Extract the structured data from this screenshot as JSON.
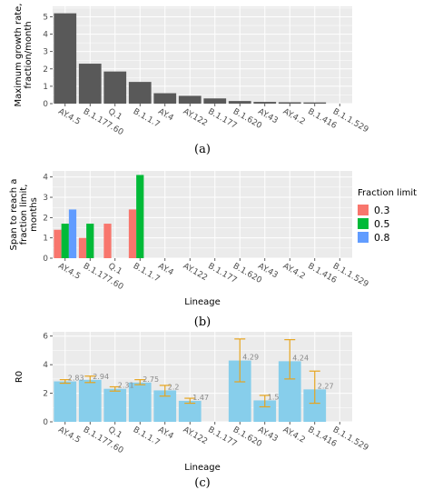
{
  "chart_data": [
    {
      "type": "bar",
      "panel": "a",
      "caption": "(a)",
      "ylabel_lines": [
        "Maximum growth rate,",
        "fraction/month"
      ],
      "xlabel": "",
      "categories": [
        "AY.4.5",
        "B.1.177.60",
        "Q.1",
        "B.1.1.7",
        "AY.4",
        "AY.122",
        "B.1.177",
        "B.1.620",
        "AY.43",
        "AY.4.2",
        "B.1.416",
        "B.1.1.529"
      ],
      "values": [
        5.2,
        2.3,
        1.85,
        1.25,
        0.6,
        0.45,
        0.3,
        0.15,
        0.1,
        0.08,
        0.07,
        0
      ],
      "ylim": [
        0,
        5.6
      ],
      "yticks": [
        "0",
        "1",
        "2",
        "3",
        "4",
        "5"
      ],
      "bar_color": "#595959",
      "grid": true
    },
    {
      "type": "bar",
      "panel": "b",
      "caption": "(b)",
      "ylabel_lines": [
        "Span to reach a",
        "fraction limit,",
        "months"
      ],
      "xlabel": "Lineage",
      "categories": [
        "AY.4.5",
        "B.1.177.60",
        "Q.1",
        "B.1.1.7",
        "AY.4",
        "AY.122",
        "B.1.177",
        "B.1.620",
        "AY.43",
        "AY.4.2",
        "B.1.416",
        "B.1.1.529"
      ],
      "series": [
        {
          "name": "0.3",
          "color": "#f8766d",
          "values": [
            1.4,
            1.0,
            1.7,
            2.4,
            null,
            null,
            null,
            null,
            null,
            null,
            null,
            null
          ]
        },
        {
          "name": "0.5",
          "color": "#00ba38",
          "values": [
            1.7,
            1.7,
            null,
            4.1,
            null,
            null,
            null,
            null,
            null,
            null,
            null,
            null
          ]
        },
        {
          "name": "0.8",
          "color": "#619cff",
          "values": [
            2.4,
            null,
            null,
            null,
            null,
            null,
            null,
            null,
            null,
            null,
            null,
            null
          ]
        }
      ],
      "ylim": [
        0,
        4.3
      ],
      "yticks": [
        "0",
        "1",
        "2",
        "3",
        "4"
      ],
      "legend": {
        "title": "Fraction limit",
        "placement": "right"
      },
      "grid": true
    },
    {
      "type": "bar",
      "panel": "c",
      "caption": "(c)",
      "ylabel": "R0",
      "xlabel": "Lineage",
      "categories": [
        "AY.4.5",
        "B.1.177.60",
        "Q.1",
        "B.1.1.7",
        "AY.4",
        "AY.122",
        "B.1.177",
        "B.1.620",
        "AY.43",
        "AY.4.2",
        "B.1.416",
        "B.1.1.529"
      ],
      "values": [
        2.83,
        2.94,
        2.31,
        2.75,
        2.2,
        1.47,
        null,
        4.29,
        1.5,
        4.24,
        2.27,
        null
      ],
      "labels": [
        "2.83",
        "2.94",
        "2.31",
        "2.75",
        "2.2",
        "1.47",
        "",
        "4.29",
        "1.5",
        "4.24",
        "2.27",
        ""
      ],
      "err_low": [
        2.7,
        2.75,
        2.15,
        2.6,
        1.8,
        1.3,
        null,
        2.8,
        1.05,
        3.0,
        1.3,
        null
      ],
      "err_high": [
        2.95,
        3.2,
        2.45,
        2.95,
        2.55,
        1.65,
        null,
        5.8,
        1.85,
        5.75,
        3.55,
        null
      ],
      "ylim": [
        0,
        6.3
      ],
      "yticks": [
        "0",
        "2",
        "4",
        "6"
      ],
      "bar_color": "#87ceeb",
      "err_color": "#e6a41e",
      "grid": true
    }
  ]
}
